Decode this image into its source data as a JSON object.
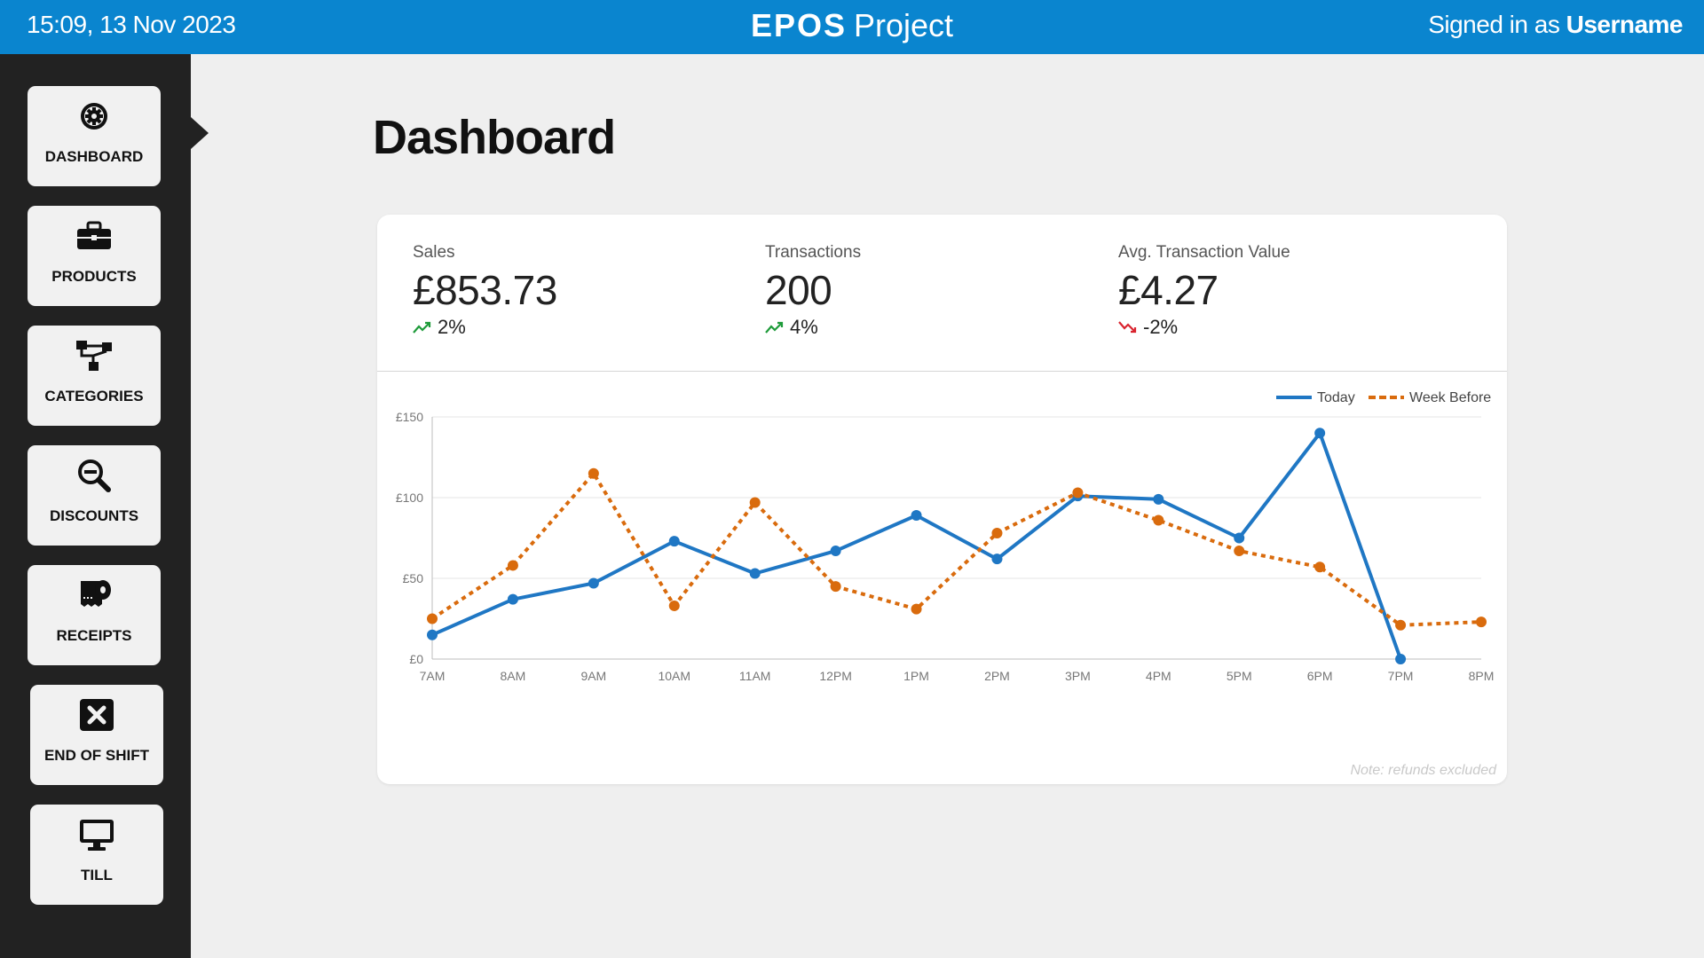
{
  "header": {
    "datetime": "15:09, 13 Nov 2023",
    "brand_name": "EPOS",
    "brand_suffix": "Project",
    "signed_prefix": "Signed in as ",
    "username": "Username"
  },
  "sidebar": {
    "items": [
      {
        "label": "DASHBOARD",
        "icon": "gear-icon",
        "active": true
      },
      {
        "label": "PRODUCTS",
        "icon": "briefcase-icon"
      },
      {
        "label": "CATEGORIES",
        "icon": "sitemap-icon"
      },
      {
        "label": "DISCOUNTS",
        "icon": "zoom-out-icon"
      },
      {
        "label": "RECEIPTS",
        "icon": "receipt-roll-icon"
      },
      {
        "label": "END OF SHIFT",
        "icon": "close-box-icon"
      },
      {
        "label": "TILL",
        "icon": "monitor-icon"
      }
    ]
  },
  "main": {
    "title": "Dashboard",
    "stats": [
      {
        "label": "Sales",
        "value": "£853.73",
        "change": "2%",
        "trend": "up",
        "trend_color": "#1e9b3a"
      },
      {
        "label": "Transactions",
        "value": "200",
        "change": "4%",
        "trend": "up",
        "trend_color": "#1e9b3a"
      },
      {
        "label": "Avg. Transaction Value",
        "value": "£4.27",
        "change": "-2%",
        "trend": "down",
        "trend_color": "#d9232e"
      }
    ],
    "note": "Note: refunds excluded"
  },
  "chart_data": {
    "type": "line",
    "categories": [
      "7AM",
      "8AM",
      "9AM",
      "10AM",
      "11AM",
      "12PM",
      "1PM",
      "2PM",
      "3PM",
      "4PM",
      "5PM",
      "6PM",
      "7PM",
      "8PM"
    ],
    "yticks": [
      "£0",
      "£50",
      "£100",
      "£150"
    ],
    "ylim": [
      0,
      150
    ],
    "grid": true,
    "legend_position": "top-right",
    "series": [
      {
        "name": "Today",
        "color": "#1f77c4",
        "style": "solid",
        "values": [
          15,
          37,
          47,
          73,
          53,
          67,
          89,
          62,
          101,
          99,
          75,
          140,
          0,
          null
        ]
      },
      {
        "name": "Week Before",
        "color": "#d96b0d",
        "style": "dotted",
        "values": [
          25,
          58,
          115,
          33,
          97,
          45,
          31,
          78,
          103,
          86,
          67,
          57,
          21,
          23
        ]
      }
    ]
  },
  "colors": {
    "header": "#0a85cf",
    "sidebar": "#222222",
    "background": "#efefef"
  }
}
